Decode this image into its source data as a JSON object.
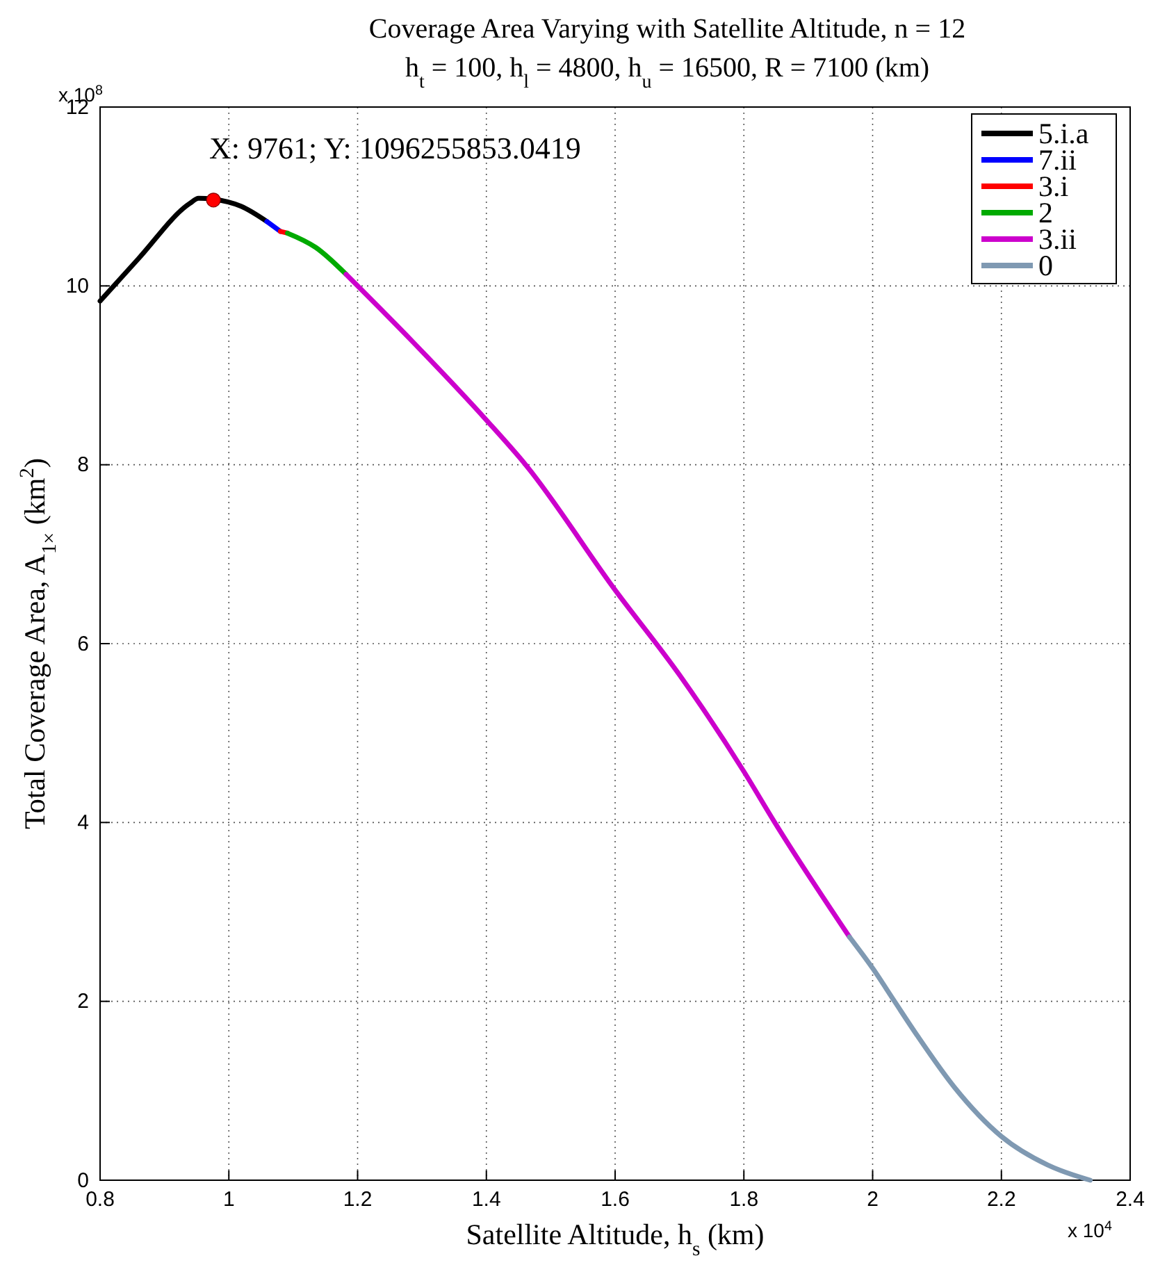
{
  "chart_data": {
    "type": "line",
    "title": "Coverage Area Varying with Satellite Altitude, n = 12",
    "subtitle": "h$_{t}$ = 100, h$_{l}$ = 4800, h$_{u}$ = 16500, R = 7100 (km)",
    "xlabel": "Satellite Altitude, h$_{s}$ (km)",
    "ylabel": "Total Coverage Area, A$_{1×}$ (km$^{2}$)",
    "xlim": [
      0.8,
      2.4
    ],
    "xticks": [
      0.8,
      1,
      1.2,
      1.4,
      1.6,
      1.8,
      2,
      2.2,
      2.4
    ],
    "ylim": [
      0,
      12
    ],
    "yticks": [
      0,
      2,
      4,
      6,
      8,
      10,
      12
    ],
    "grid": true,
    "legend": "top right",
    "line_style": "solid",
    "marker": "none",
    "annotations": [
      {
        "text": "X: 9761; Y: 1096255853.0419",
        "x": 0.9761,
        "y": 10.96
      },
      "x 10$^{8}$",
      "x 10$^{4}$"
    ],
    "series": [
      {
        "name": "5.i.a",
        "color": "#000000",
        "x": [
          0.8,
          0.859,
          0.939,
          0.953,
          0.975,
          1.019,
          1.059
        ],
        "values": [
          9.83,
          10.3,
          10.92,
          10.98,
          10.97,
          10.89,
          10.72
        ]
      },
      {
        "name": "7.ii",
        "color": "#0000ff",
        "x": [
          1.059,
          1.08
        ],
        "values": [
          10.72,
          10.61
        ]
      },
      {
        "name": "3.i",
        "color": "#ff0000",
        "x": [
          1.08,
          1.091
        ],
        "values": [
          10.61,
          10.59
        ]
      },
      {
        "name": "2",
        "color": "#00aa00",
        "x": [
          1.091,
          1.135,
          1.182
        ],
        "values": [
          10.59,
          10.43,
          10.13
        ]
      },
      {
        "name": "3.ii",
        "color": "#cc00cc",
        "x": [
          1.182,
          1.285,
          1.4,
          1.461,
          1.6,
          1.7,
          1.8,
          1.848,
          1.964
        ],
        "values": [
          10.13,
          9.38,
          8.5,
          8.0,
          6.6,
          5.65,
          4.57,
          4.0,
          2.72
        ]
      },
      {
        "name": "0",
        "color": "#7f99b2",
        "x": [
          1.964,
          2.001,
          2.034,
          2.07,
          2.127,
          2.2,
          2.272,
          2.338
        ],
        "values": [
          2.72,
          2.36,
          2.0,
          1.61,
          1.04,
          0.49,
          0.17,
          0.0
        ]
      },
      {
        "type": "scatter",
        "marker": "circle",
        "color": "#ff0000",
        "x": [
          0.9761
        ],
        "values": [
          10.96
        ]
      }
    ]
  }
}
